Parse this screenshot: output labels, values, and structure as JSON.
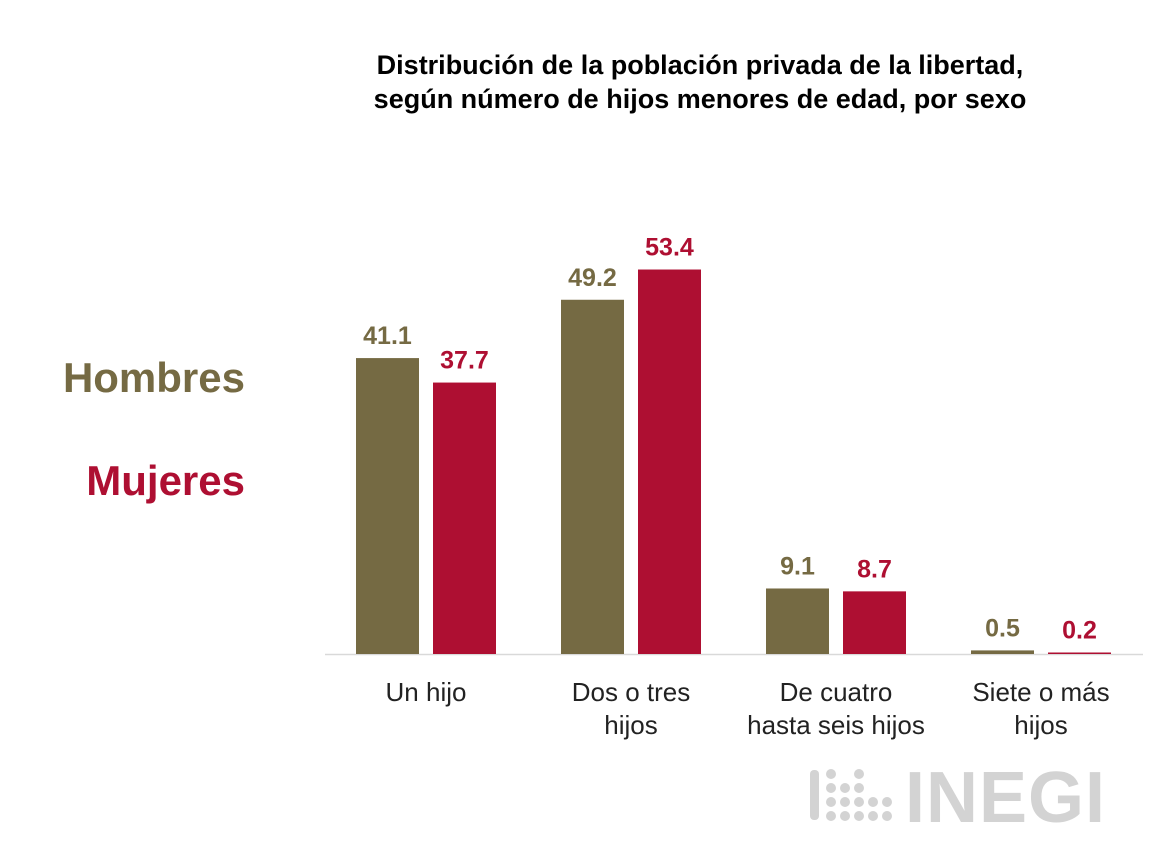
{
  "chart_data": {
    "type": "bar",
    "title": "Distribución de la población privada de la libertad, según número de hijos menores de edad, por sexo",
    "title_lines": [
      "Distribución de la población privada de la libertad,",
      "según número de hijos menores de edad, por sexo"
    ],
    "categories": [
      [
        "Un hijo"
      ],
      [
        "Dos o tres",
        "hijos"
      ],
      [
        "De cuatro",
        "hasta seis hijos"
      ],
      [
        "Siete o más",
        "hijos"
      ]
    ],
    "series": [
      {
        "name": "Hombres",
        "color": "#756a43",
        "values": [
          41.1,
          49.2,
          9.1,
          0.5
        ]
      },
      {
        "name": "Mujeres",
        "color": "#ae0f32",
        "values": [
          37.7,
          53.4,
          8.7,
          0.2
        ]
      }
    ],
    "value_labels": [
      [
        "41.1",
        "49.2",
        "9.1",
        "0.5"
      ],
      [
        "37.7",
        "53.4",
        "8.7",
        "0.2"
      ]
    ],
    "ylim": [
      0,
      60
    ],
    "legend_position": "left",
    "grid": false,
    "xlabel": "",
    "ylabel": ""
  },
  "logo": {
    "text": "INEGI",
    "color": "#d3d3d3"
  },
  "axis_color": "#d9d9d9"
}
